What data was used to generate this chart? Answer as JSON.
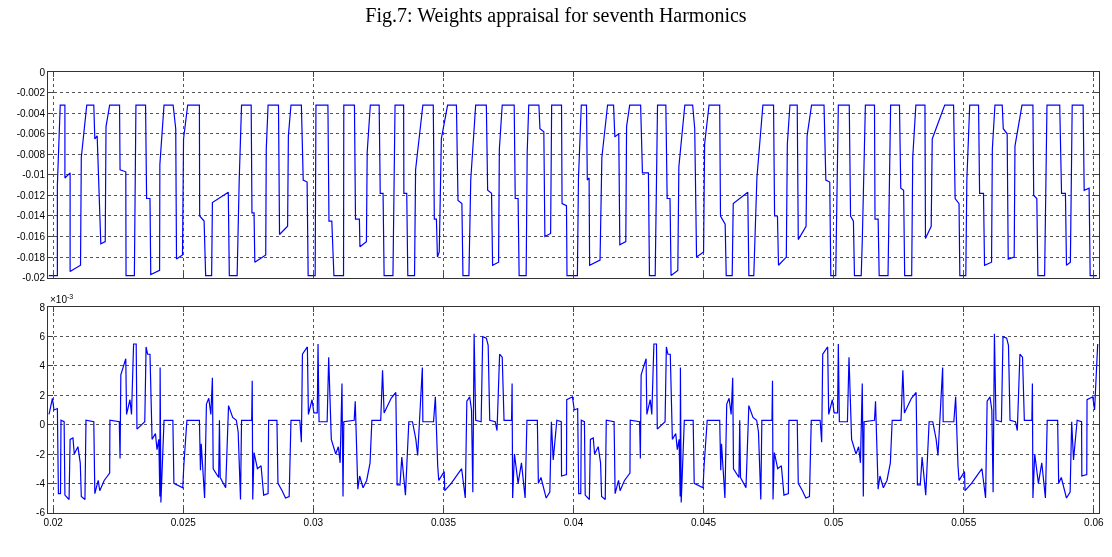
{
  "chart_data": [
    {
      "type": "line",
      "title": "Fig.7: Weights appraisal for seventh Harmonics",
      "grid": true,
      "marker": "none",
      "line_style": "solid",
      "tick_labels": "y",
      "xlim": [
        0.0198,
        0.0602
      ],
      "xticks": [
        {
          "value": 0.02,
          "label": null
        },
        {
          "value": 0.025,
          "label": null
        },
        {
          "value": 0.03,
          "label": null
        },
        {
          "value": 0.035,
          "label": null
        },
        {
          "value": 0.04,
          "label": null
        },
        {
          "value": 0.045,
          "label": null
        },
        {
          "value": 0.05,
          "label": null
        },
        {
          "value": 0.055,
          "label": null
        },
        {
          "value": 0.06,
          "label": null
        }
      ],
      "ylim": [
        -0.02,
        0
      ],
      "yticks": [
        0,
        -0.002,
        -0.004,
        -0.006,
        -0.008,
        -0.01,
        -0.012,
        -0.014,
        -0.016,
        -0.018,
        -0.02
      ],
      "series": [
        {
          "color": "#0000ff",
          "x": [
            0.01983,
            0.02016,
            0.02016,
            0.02027,
            0.02045,
            0.02045,
            0.02065,
            0.02065,
            0.02105,
            0.02108,
            0.02129,
            0.02156,
            0.0216,
            0.02169,
            0.02183,
            0.022,
            0.02203,
            0.02217,
            0.02255,
            0.02257,
            0.02279,
            0.0228,
            0.02312,
            0.02318,
            0.02355,
            0.02359,
            0.02372,
            0.02375,
            0.02409,
            0.0241,
            0.02426,
            0.02461,
            0.02471,
            0.02474,
            0.02497,
            0.02501,
            0.02517,
            0.02562,
            0.02563,
            0.0258,
            0.02586,
            0.02609,
            0.02612,
            0.02673,
            0.02677,
            0.02707,
            0.02715,
            0.02724,
            0.02761,
            0.02764,
            0.02772,
            0.02775,
            0.02817,
            0.02819,
            0.02826,
            0.02866,
            0.0287,
            0.02901,
            0.02904,
            0.02914,
            0.02954,
            0.02961,
            0.02976,
            0.0298,
            0.03007,
            0.0301,
            0.03056,
            0.0306,
            0.03071,
            0.03079,
            0.03116,
            0.03117,
            0.03158,
            0.03162,
            0.03177,
            0.03179,
            0.03204,
            0.03207,
            0.03219,
            0.03253,
            0.03257,
            0.03268,
            0.03272,
            0.03306,
            0.03314,
            0.03347,
            0.03348,
            0.03359,
            0.03363,
            0.03389,
            0.03393,
            0.03421,
            0.03461,
            0.03465,
            0.03473,
            0.03477,
            0.03484,
            0.03492,
            0.03516,
            0.0355,
            0.03556,
            0.03571,
            0.03575,
            0.03598,
            0.03605,
            0.03624,
            0.03665,
            0.0367,
            0.03685,
            0.03689,
            0.03712,
            0.03715,
            0.03726,
            0.03772,
            0.03776,
            0.03787,
            0.03791,
            0.03818,
            0.03822,
            0.03828,
            0.03867,
            0.03871,
            0.03886,
            0.0389,
            0.03912,
            0.03916,
            0.03954,
            0.03956,
            0.03973,
            0.03975,
            0.04015,
            0.04019,
            0.0403,
            0.0405,
            0.04053,
            0.0406,
            0.04062,
            0.04102,
            0.04109,
            0.04131,
            0.04154,
            0.04159,
            0.04174,
            0.04178,
            0.04201,
            0.04204,
            0.04216,
            0.04258,
            0.04265,
            0.04288,
            0.04292,
            0.04314,
            0.04323,
            0.04355,
            0.0436,
            0.04371,
            0.04375,
            0.04401,
            0.04405,
            0.04428,
            0.04458,
            0.04466,
            0.04473,
            0.045,
            0.04504,
            0.04521,
            0.04562,
            0.04565,
            0.04583,
            0.04587,
            0.0461,
            0.04614,
            0.0467,
            0.04674,
            0.04693,
            0.04705,
            0.04728,
            0.04769,
            0.04773,
            0.04784,
            0.04788,
            0.04818,
            0.04822,
            0.04832,
            0.0486,
            0.04864,
            0.04894,
            0.04898,
            0.04915,
            0.04963,
            0.0497,
            0.04985,
            0.04989,
            0.05008,
            0.05018,
            0.0506,
            0.05065,
            0.05076,
            0.0508,
            0.05106,
            0.0511,
            0.05122,
            0.05157,
            0.05159,
            0.05171,
            0.05175,
            0.05209,
            0.05219,
            0.05253,
            0.05258,
            0.05269,
            0.05273,
            0.053,
            0.05304,
            0.05316,
            0.05351,
            0.05353,
            0.05375,
            0.05379,
            0.05427,
            0.05461,
            0.05467,
            0.05482,
            0.05485,
            0.05508,
            0.05512,
            0.05523,
            0.05557,
            0.05561,
            0.05576,
            0.0558,
            0.05607,
            0.0561,
            0.0562,
            0.05648,
            0.05652,
            0.05667,
            0.05671,
            0.05694,
            0.05697,
            0.05724,
            0.05766,
            0.05769,
            0.05781,
            0.05785,
            0.05811,
            0.0582,
            0.05869,
            0.05876,
            0.05891,
            0.05895,
            0.0591,
            0.05917,
            0.05959,
            0.05963,
            0.05982,
            0.05986,
            0.06012
          ],
          "values": [
            -0.0198,
            -0.0198,
            -0.011,
            -0.0032,
            -0.0032,
            -0.0103,
            -0.0098,
            -0.0194,
            -0.0188,
            -0.0083,
            -0.0032,
            -0.0032,
            -0.0065,
            -0.0062,
            -0.0167,
            -0.0165,
            -0.0053,
            -0.0032,
            -0.0032,
            -0.0095,
            -0.0097,
            -0.0198,
            -0.0198,
            -0.0032,
            -0.0032,
            -0.0123,
            -0.0123,
            -0.0197,
            -0.0193,
            -0.009,
            -0.0032,
            -0.0032,
            -0.0055,
            -0.0182,
            -0.0178,
            -0.0065,
            -0.0032,
            -0.0032,
            -0.014,
            -0.0145,
            -0.0198,
            -0.0198,
            -0.0127,
            -0.0117,
            -0.0198,
            -0.0198,
            -0.0105,
            -0.0032,
            -0.0032,
            -0.0137,
            -0.0137,
            -0.0185,
            -0.0178,
            -0.0075,
            -0.0032,
            -0.0032,
            -0.0158,
            -0.015,
            -0.0062,
            -0.0032,
            -0.0032,
            -0.0105,
            -0.0107,
            -0.0198,
            -0.0198,
            -0.0032,
            -0.0032,
            -0.0145,
            -0.0145,
            -0.0198,
            -0.0198,
            -0.0032,
            -0.0032,
            -0.0143,
            -0.0143,
            -0.017,
            -0.0165,
            -0.0078,
            -0.0032,
            -0.0032,
            -0.0118,
            -0.0118,
            -0.0198,
            -0.0198,
            -0.0032,
            -0.0032,
            -0.0118,
            -0.0118,
            -0.0198,
            -0.0198,
            -0.0095,
            -0.0032,
            -0.0032,
            -0.0143,
            -0.0143,
            -0.018,
            -0.0175,
            -0.0065,
            -0.0032,
            -0.0032,
            -0.0125,
            -0.0128,
            -0.0198,
            -0.0198,
            -0.0105,
            -0.0032,
            -0.0032,
            -0.0115,
            -0.0118,
            -0.0188,
            -0.0185,
            -0.0075,
            -0.0032,
            -0.0032,
            -0.0123,
            -0.0123,
            -0.0198,
            -0.0198,
            -0.0078,
            -0.0032,
            -0.0032,
            -0.0055,
            -0.0058,
            -0.016,
            -0.0157,
            -0.0032,
            -0.0032,
            -0.0128,
            -0.013,
            -0.0198,
            -0.0198,
            -0.0104,
            -0.0032,
            -0.0032,
            -0.0105,
            -0.0103,
            -0.0188,
            -0.0183,
            -0.0083,
            -0.0032,
            -0.0032,
            -0.0063,
            -0.006,
            -0.0168,
            -0.0165,
            -0.0053,
            -0.0032,
            -0.0032,
            -0.0098,
            -0.0098,
            -0.0198,
            -0.0198,
            -0.0032,
            -0.0032,
            -0.0123,
            -0.0123,
            -0.0198,
            -0.0193,
            -0.0092,
            -0.0032,
            -0.0032,
            -0.0055,
            -0.018,
            -0.0175,
            -0.007,
            -0.0032,
            -0.0032,
            -0.014,
            -0.0148,
            -0.0198,
            -0.0198,
            -0.0128,
            -0.0117,
            -0.0198,
            -0.0198,
            -0.0103,
            -0.0032,
            -0.0032,
            -0.014,
            -0.014,
            -0.0188,
            -0.018,
            -0.007,
            -0.0032,
            -0.0032,
            -0.0163,
            -0.015,
            -0.0062,
            -0.0032,
            -0.0032,
            -0.0105,
            -0.0107,
            -0.0198,
            -0.0198,
            -0.0032,
            -0.0032,
            -0.014,
            -0.0145,
            -0.0198,
            -0.0198,
            -0.0165,
            -0.0032,
            -0.0032,
            -0.0143,
            -0.0143,
            -0.0198,
            -0.0198,
            -0.0032,
            -0.0032,
            -0.0113,
            -0.0115,
            -0.0198,
            -0.0198,
            -0.0083,
            -0.0032,
            -0.0032,
            -0.0162,
            -0.015,
            -0.0065,
            -0.0032,
            -0.0032,
            -0.0123,
            -0.0128,
            -0.0198,
            -0.0198,
            -0.0105,
            -0.0032,
            -0.0032,
            -0.0118,
            -0.0118,
            -0.0188,
            -0.0185,
            -0.0075,
            -0.0032,
            -0.0032,
            -0.0055,
            -0.006,
            -0.0182,
            -0.018,
            -0.0072,
            -0.0032,
            -0.0032,
            -0.012,
            -0.0123,
            -0.0198,
            -0.0198,
            -0.0032,
            -0.0032,
            -0.0118,
            -0.0118,
            -0.0188,
            -0.0185,
            -0.0032,
            -0.0032,
            -0.0115,
            -0.0113,
            -0.0198,
            -0.0198
          ]
        }
      ]
    },
    {
      "type": "line",
      "grid": true,
      "marker": "none",
      "line_style": "solid",
      "annotations": [
        "×10$^{-3}$"
      ],
      "xlim": [
        0.0198,
        0.0602
      ],
      "xticks": [
        0.02,
        0.025,
        0.03,
        0.035,
        0.04,
        0.045,
        0.05,
        0.055,
        0.06
      ],
      "ylim": [
        -6,
        8
      ],
      "yticks": [
        8,
        6,
        4,
        2,
        0,
        -2,
        -4,
        -6
      ],
      "series": [
        {
          "color": "#0000ff",
          "x": [
            0.01984,
            0.01997,
            0.02003,
            0.02016,
            0.0202,
            0.02028,
            0.0203,
            0.02042,
            0.02045,
            0.02061,
            0.02065,
            0.02076,
            0.02081,
            0.02095,
            0.02104,
            0.02108,
            0.02122,
            0.02126,
            0.02156,
            0.0216,
            0.02173,
            0.02179,
            0.02196,
            0.02217,
            0.02218,
            0.02254,
            0.02257,
            0.0226,
            0.02279,
            0.02282,
            0.02295,
            0.02301,
            0.02309,
            0.02319,
            0.02322,
            0.02352,
            0.02357,
            0.02363,
            0.02372,
            0.0238,
            0.02393,
            0.02399,
            0.02406,
            0.0241,
            0.02411,
            0.02414,
            0.02426,
            0.0246,
            0.02464,
            0.02498,
            0.02502,
            0.02514,
            0.02562,
            0.02566,
            0.02569,
            0.02582,
            0.02589,
            0.02598,
            0.02606,
            0.02612,
            0.02615,
            0.02636,
            0.02639,
            0.02642,
            0.02663,
            0.02674,
            0.0269,
            0.02704,
            0.02711,
            0.0272,
            0.02724,
            0.02763,
            0.02765,
            0.02767,
            0.02772,
            0.02785,
            0.02799,
            0.02809,
            0.02826,
            0.02828,
            0.0286,
            0.02864,
            0.0288,
            0.02893,
            0.02907,
            0.02914,
            0.02948,
            0.02954,
            0.02958,
            0.02977,
            0.02981,
            0.02995,
            0.03002,
            0.03015,
            0.03018,
            0.03022,
            0.03053,
            0.03059,
            0.03069,
            0.03086,
            0.03096,
            0.03103,
            0.0311,
            0.03114,
            0.03117,
            0.03157,
            0.03161,
            0.03171,
            0.03178,
            0.03191,
            0.03205,
            0.03218,
            0.03225,
            0.03259,
            0.03266,
            0.03272,
            0.03299,
            0.03317,
            0.03322,
            0.03333,
            0.0334,
            0.03354,
            0.03367,
            0.03381,
            0.03394,
            0.03401,
            0.03419,
            0.03421,
            0.03462,
            0.03469,
            0.03478,
            0.03482,
            0.03503,
            0.03505,
            0.0353,
            0.0357,
            0.03584,
            0.0359,
            0.03601,
            0.03608,
            0.03613,
            0.03618,
            0.03624,
            0.03645,
            0.03651,
            0.03665,
            0.03672,
            0.03678,
            0.03699,
            0.03706,
            0.03716,
            0.03726,
            0.03733,
            0.03762,
            0.03764,
            0.03766,
            0.03773,
            0.03787,
            0.038,
            0.03814,
            0.03821,
            0.03861,
            0.03865,
            0.03875,
            0.03895,
            0.03909,
            0.03915,
            0.03922,
            0.03936,
            0.03953,
            0.03954,
            0.03973,
            0.03974,
            0.03996,
            0.04003,
            0.04016,
            0.0402,
            0.04028,
            0.0403,
            0.04042,
            0.04045,
            0.04061,
            0.04065,
            0.04076,
            0.04081,
            0.04095,
            0.04104,
            0.04108,
            0.04122,
            0.04126,
            0.04156,
            0.0416,
            0.04173,
            0.04179,
            0.04196,
            0.04217,
            0.04218,
            0.04254,
            0.04257,
            0.0426,
            0.04279,
            0.04282,
            0.04295,
            0.04301,
            0.04309,
            0.04319,
            0.04322,
            0.04352,
            0.04357,
            0.04363,
            0.04372,
            0.0438,
            0.04393,
            0.04399,
            0.04406,
            0.0441,
            0.04411,
            0.04414,
            0.04426,
            0.0446,
            0.04464,
            0.04498,
            0.04502,
            0.04514,
            0.04562,
            0.04566,
            0.04569,
            0.04582,
            0.04589,
            0.04598,
            0.04606,
            0.04612,
            0.04615,
            0.04636,
            0.04639,
            0.04642,
            0.04663,
            0.04674,
            0.0469,
            0.04704,
            0.04711,
            0.0472,
            0.04724,
            0.04763,
            0.04765,
            0.04767,
            0.04772,
            0.04785,
            0.04799,
            0.04809,
            0.04826,
            0.04828,
            0.0486,
            0.04864,
            0.0488,
            0.04893,
            0.04907,
            0.04914,
            0.04948,
            0.04954,
            0.04958,
            0.04977,
            0.04981,
            0.04995,
            0.05002,
            0.05015,
            0.05018,
            0.05022,
            0.05053,
            0.05059,
            0.05069,
            0.05086,
            0.05096,
            0.05103,
            0.0511,
            0.05114,
            0.05117,
            0.05157,
            0.05161,
            0.05171,
            0.05178,
            0.05191,
            0.05205,
            0.05218,
            0.05225,
            0.05259,
            0.05266,
            0.05272,
            0.05299,
            0.05317,
            0.05322,
            0.05333,
            0.0534,
            0.05354,
            0.05367,
            0.05381,
            0.05394,
            0.05401,
            0.05419,
            0.05421,
            0.05462,
            0.05469,
            0.05478,
            0.05482,
            0.05503,
            0.05505,
            0.0553,
            0.0557,
            0.05584,
            0.0559,
            0.05601,
            0.05608,
            0.05613,
            0.05618,
            0.05624,
            0.05645,
            0.05651,
            0.05665,
            0.05672,
            0.05678,
            0.05699,
            0.05706,
            0.05716,
            0.05726,
            0.05733,
            0.05762,
            0.05764,
            0.05766,
            0.05773,
            0.05787,
            0.058,
            0.05814,
            0.05821,
            0.05861,
            0.05865,
            0.05875,
            0.05895,
            0.05909,
            0.05915,
            0.05922,
            0.05936,
            0.05953,
            0.05954,
            0.05973,
            0.05974,
            0.05996,
            0.06003,
            0.06015
          ],
          "values": [
            0.7,
            1.8,
            1.0,
            1.1,
            -4.7,
            -4.7,
            0.3,
            0.2,
            -4.8,
            -5.1,
            -1.0,
            -0.9,
            -2.0,
            -1.5,
            -2.6,
            -4.9,
            -5.1,
            0.3,
            0.2,
            -4.7,
            -3.8,
            -4.5,
            -3.8,
            -3.3,
            0.3,
            0.2,
            -2.3,
            3.4,
            4.5,
            0.7,
            1.7,
            0.7,
            5.5,
            5.5,
            -0.3,
            0.2,
            5.3,
            4.8,
            4.8,
            -1.0,
            -0.6,
            -1.7,
            -1.0,
            -4.9,
            3.9,
            -5.3,
            0.3,
            0.3,
            -4.0,
            -4.3,
            -2.8,
            0.3,
            0.3,
            -3.1,
            -1.3,
            -5.0,
            1.4,
            1.8,
            0.7,
            3.2,
            -3.0,
            -3.6,
            0.3,
            -3.6,
            -4.3,
            1.3,
            0.5,
            0.3,
            -0.5,
            -5.1,
            0.3,
            0.3,
            3.0,
            -5.1,
            -1.9,
            -3.0,
            -2.8,
            -4.8,
            -4.7,
            0.3,
            0.3,
            -4.0,
            -4.5,
            -5.0,
            -4.9,
            0.3,
            0.3,
            -1.2,
            4.8,
            5.3,
            0.7,
            1.7,
            0.8,
            0.8,
            5.5,
            0.2,
            0.2,
            4.6,
            -1.0,
            -2.0,
            -1.5,
            -2.6,
            2.8,
            -4.9,
            0.2,
            0.3,
            1.6,
            -4.4,
            -3.5,
            -4.3,
            -3.8,
            -2.6,
            0.3,
            0.3,
            3.7,
            0.8,
            1.8,
            2.2,
            -4.1,
            -4.1,
            -2.2,
            -4.8,
            0.2,
            0.2,
            -1.0,
            -2.1,
            3.9,
            0.2,
            0.2,
            1.9,
            -2.8,
            -3.8,
            -3.2,
            -4.5,
            -4.0,
            -3.0,
            -5.0,
            1.6,
            1.9,
            1.0,
            -4.6,
            6.2,
            0.3,
            0.2,
            6.0,
            5.9,
            5.4,
            0.3,
            0.2,
            -0.4,
            4.8,
            4.6,
            0.3,
            0.3,
            2.8,
            -5.0,
            -2.0,
            -4.0,
            -2.6,
            -5.0,
            0.3,
            0.3,
            -4.0,
            -3.6,
            -5.0,
            -4.6,
            0.2,
            -2.4,
            0.3,
            0.2,
            -3.5,
            -3.4,
            1.7,
            1.9,
            1.0,
            1.1,
            -4.7,
            -4.7,
            0.3,
            0.2,
            -4.8,
            -5.1,
            -1.0,
            -0.9,
            -2.0,
            -1.5,
            -2.6,
            -4.9,
            -5.1,
            0.3,
            0.2,
            -4.7,
            -3.8,
            -4.5,
            -3.8,
            -3.3,
            0.3,
            0.2,
            -2.3,
            3.4,
            4.5,
            0.7,
            1.7,
            0.7,
            5.5,
            5.5,
            -0.3,
            0.2,
            5.3,
            4.8,
            4.8,
            -1.0,
            -0.6,
            -1.7,
            -1.0,
            -4.9,
            3.9,
            -5.3,
            0.3,
            0.3,
            -4.0,
            -4.3,
            -2.8,
            0.3,
            0.3,
            -3.1,
            -1.3,
            -5.0,
            1.4,
            1.8,
            0.7,
            3.2,
            -3.0,
            -3.6,
            0.3,
            -3.6,
            -4.3,
            1.3,
            0.5,
            0.3,
            -0.5,
            -5.1,
            0.3,
            0.3,
            3.0,
            -5.1,
            -1.9,
            -3.0,
            -2.8,
            -4.8,
            -4.7,
            0.3,
            0.3,
            -4.0,
            -4.5,
            -5.0,
            -4.9,
            0.3,
            0.3,
            -1.2,
            4.8,
            5.3,
            0.7,
            1.7,
            0.8,
            0.8,
            5.5,
            0.2,
            0.2,
            4.6,
            -1.0,
            -2.0,
            -1.5,
            -2.6,
            2.8,
            -4.9,
            0.2,
            0.3,
            1.6,
            -4.4,
            -3.5,
            -4.3,
            -3.8,
            -2.6,
            0.3,
            0.3,
            3.7,
            0.8,
            1.8,
            2.2,
            -4.1,
            -4.1,
            -2.2,
            -4.8,
            0.2,
            0.2,
            -1.0,
            -2.1,
            3.9,
            0.2,
            0.2,
            1.9,
            -2.8,
            -3.8,
            -3.2,
            -4.5,
            -4.0,
            -3.0,
            -5.0,
            1.6,
            1.9,
            1.0,
            -4.6,
            6.2,
            0.3,
            0.2,
            6.0,
            5.9,
            5.4,
            0.3,
            0.2,
            -0.4,
            4.8,
            4.6,
            0.3,
            0.3,
            2.8,
            -5.0,
            -2.0,
            -4.0,
            -2.6,
            -5.0,
            0.3,
            0.3,
            -4.0,
            -3.6,
            -5.0,
            -4.6,
            0.2,
            -2.4,
            0.3,
            0.2,
            -3.5,
            -3.4,
            1.7,
            1.9,
            1.0,
            5.5
          ]
        }
      ]
    }
  ]
}
